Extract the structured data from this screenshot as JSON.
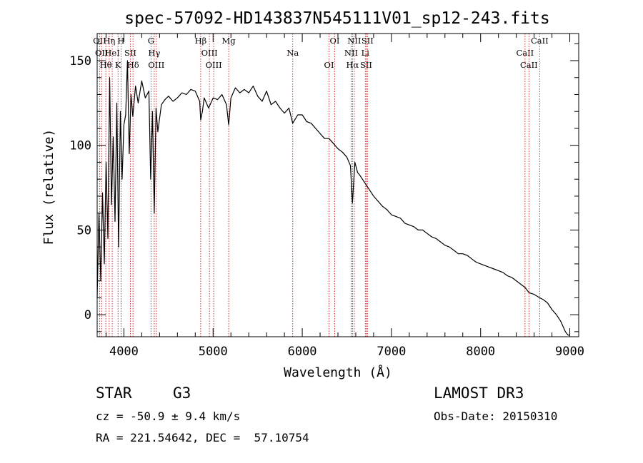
{
  "chart_data": {
    "type": "line",
    "title": "spec-57092-HD143837N545111V01_sp12-243.fits",
    "xlabel": "Wavelength (Å)",
    "ylabel": "Flux (relative)",
    "xlim": [
      3700,
      9100
    ],
    "ylim": [
      -13,
      166
    ],
    "xticks": [
      4000,
      5000,
      6000,
      7000,
      8000,
      9000
    ],
    "xtick_labels": [
      "4000",
      "5000",
      "6000",
      "7000",
      "8000",
      "9000"
    ],
    "yticks": [
      0,
      50,
      100,
      150
    ],
    "ytick_labels": [
      "0",
      "50",
      "100",
      "150"
    ],
    "grid": false,
    "legend": "none",
    "series": [
      {
        "name": "spectrum",
        "x": [
          3700,
          3720,
          3740,
          3760,
          3780,
          3800,
          3820,
          3840,
          3860,
          3880,
          3900,
          3920,
          3940,
          3960,
          3980,
          4000,
          4020,
          4040,
          4060,
          4080,
          4100,
          4130,
          4160,
          4200,
          4240,
          4280,
          4300,
          4320,
          4340,
          4360,
          4380,
          4420,
          4460,
          4500,
          4550,
          4600,
          4650,
          4700,
          4750,
          4800,
          4850,
          4861,
          4880,
          4900,
          4950,
          5000,
          5050,
          5100,
          5150,
          5175,
          5200,
          5250,
          5300,
          5350,
          5400,
          5450,
          5500,
          5550,
          5600,
          5650,
          5700,
          5750,
          5800,
          5850,
          5893,
          5950,
          6000,
          6050,
          6100,
          6150,
          6200,
          6250,
          6300,
          6350,
          6400,
          6450,
          6500,
          6540,
          6563,
          6590,
          6620,
          6650,
          6700,
          6750,
          6800,
          6850,
          6900,
          6950,
          7000,
          7050,
          7100,
          7150,
          7200,
          7250,
          7300,
          7350,
          7400,
          7450,
          7500,
          7550,
          7600,
          7650,
          7700,
          7750,
          7800,
          7850,
          7900,
          7950,
          8000,
          8050,
          8100,
          8150,
          8200,
          8250,
          8300,
          8350,
          8400,
          8450,
          8500,
          8542,
          8600,
          8662,
          8700,
          8750,
          8800,
          8850,
          8900,
          8950,
          8980,
          9000
        ],
        "y": [
          10,
          60,
          20,
          72,
          30,
          90,
          45,
          140,
          65,
          105,
          55,
          125,
          40,
          120,
          80,
          112,
          118,
          150,
          95,
          130,
          117,
          135,
          125,
          138,
          128,
          132,
          80,
          120,
          60,
          122,
          108,
          124,
          127,
          129,
          126,
          128,
          131,
          130,
          133,
          132,
          126,
          115,
          120,
          128,
          122,
          128,
          127,
          130,
          124,
          112,
          128,
          134,
          131,
          133,
          131,
          135,
          129,
          126,
          132,
          124,
          126,
          122,
          119,
          122,
          113,
          118,
          118,
          114,
          113,
          110,
          107,
          104,
          104,
          101,
          98,
          96,
          93,
          88,
          66,
          90,
          84,
          82,
          78,
          74,
          70,
          67,
          64,
          62,
          59,
          58,
          57,
          54,
          53,
          52,
          50,
          50,
          48,
          46,
          45,
          43,
          41,
          40,
          38,
          36,
          36,
          35,
          33,
          31,
          30,
          29,
          28,
          27,
          26,
          25,
          23,
          22,
          20,
          18,
          16,
          13,
          12,
          10,
          9,
          7,
          3,
          0,
          -4,
          -10,
          -12,
          -12
        ]
      }
    ],
    "emission_lines": [
      {
        "wl": 3727,
        "label": "OII"
      },
      {
        "wl": 3750,
        "label": "OII"
      },
      {
        "wl": 3797,
        "label": "Hθ"
      },
      {
        "wl": 3835,
        "label": "Hη"
      },
      {
        "wl": 3869,
        "label": "HeI"
      },
      {
        "wl": 3934,
        "label": "K"
      },
      {
        "wl": 3968,
        "label": "H"
      },
      {
        "wl": 4072,
        "label": "SII"
      },
      {
        "wl": 4102,
        "label": "Hδ"
      },
      {
        "wl": 4304,
        "label": "G"
      },
      {
        "wl": 4340,
        "label": "Hγ"
      },
      {
        "wl": 4363,
        "label": "OIII"
      },
      {
        "wl": 4861,
        "label": "Hβ"
      },
      {
        "wl": 4959,
        "label": "OIII"
      },
      {
        "wl": 5007,
        "label": "OIII"
      },
      {
        "wl": 5175,
        "label": "Mg"
      },
      {
        "wl": 5893,
        "label": "Na"
      },
      {
        "wl": 6300,
        "label": "OI"
      },
      {
        "wl": 6364,
        "label": "OI"
      },
      {
        "wl": 6548,
        "label": "NII"
      },
      {
        "wl": 6563,
        "label": "Hα"
      },
      {
        "wl": 6583,
        "label": "NII"
      },
      {
        "wl": 6707,
        "label": "Li"
      },
      {
        "wl": 6716,
        "label": "SII"
      },
      {
        "wl": 6731,
        "label": "SII"
      },
      {
        "wl": 8498,
        "label": "CaII"
      },
      {
        "wl": 8542,
        "label": "CaII"
      },
      {
        "wl": 8662,
        "label": "CaII"
      }
    ]
  },
  "info": {
    "class_label": "STAR",
    "subclass": "G3",
    "survey": "LAMOST DR3",
    "redshift": "cz = -50.9 ± 9.4 km/s",
    "obs_date": "Obs-Date: 20150310",
    "coords": "RA = 221.54642, DEC =  57.10754"
  },
  "colors": {
    "line_marker": "#cc2222",
    "spectrum": "#000000"
  }
}
